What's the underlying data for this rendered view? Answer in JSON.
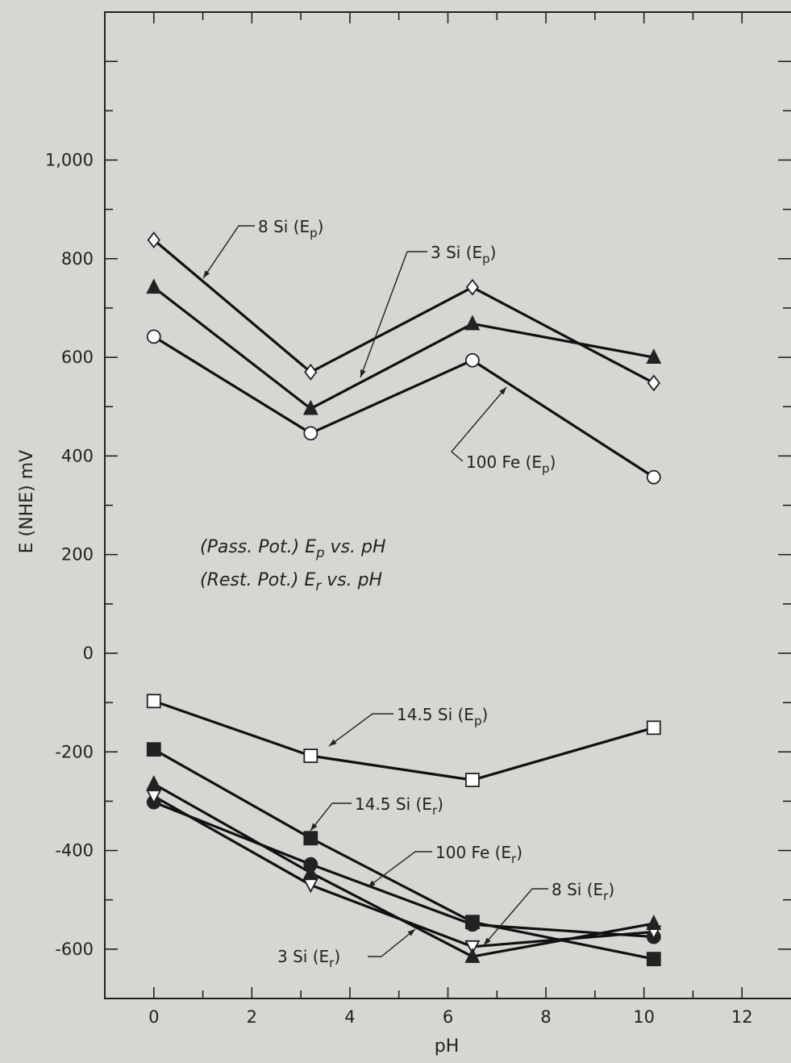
{
  "chart_data": {
    "type": "line",
    "xlabel": "pH",
    "ylabel": "E (NHE) mV",
    "xlim": [
      -1,
      13
    ],
    "ylim": [
      -700,
      1300
    ],
    "x_ticks": [
      0,
      2,
      4,
      6,
      8,
      10,
      12
    ],
    "x_tick_labels": [
      "0",
      "2",
      "4",
      "6",
      "8",
      "10",
      "12"
    ],
    "y_ticks": [
      -600,
      -400,
      -200,
      0,
      200,
      400,
      600,
      800,
      1000
    ],
    "y_tick_labels": [
      "-600",
      "-400",
      "-200",
      "0",
      "200",
      "400",
      "600",
      "800",
      "1,000"
    ],
    "grid": false,
    "notes": [
      {
        "pre": "(Pass. Pot.)  E",
        "sub": "p",
        "post": " vs. pH"
      },
      {
        "pre": "(Rest. Pot.)  E",
        "sub": "r",
        "post": " vs. pH"
      }
    ],
    "series": [
      {
        "name": "8 Si (Ep)",
        "marker": "diamond-open",
        "x": [
          0,
          3.2,
          6.5,
          10.2
        ],
        "y": [
          838,
          570,
          742,
          548
        ]
      },
      {
        "name": "3 Si (Ep)",
        "marker": "triangle-filled",
        "x": [
          0,
          3.2,
          6.5,
          10.2
        ],
        "y": [
          742,
          496,
          668,
          600
        ]
      },
      {
        "name": "100 Fe (Ep)",
        "marker": "circle-open",
        "x": [
          0,
          3.2,
          6.5,
          10.2
        ],
        "y": [
          642,
          446,
          594,
          357
        ]
      },
      {
        "name": "14.5 Si (Ep)",
        "marker": "square-open",
        "x": [
          0,
          3.2,
          6.5,
          10.2
        ],
        "y": [
          -97,
          -208,
          -257,
          -151
        ]
      },
      {
        "name": "14.5 Si (Er)",
        "marker": "square-filled",
        "x": [
          0,
          3.2,
          6.5,
          10.2
        ],
        "y": [
          -195,
          -375,
          -545,
          -620
        ]
      },
      {
        "name": "100 Fe (Er)",
        "marker": "circle-filled",
        "x": [
          0,
          3.2,
          6.5,
          10.2
        ],
        "y": [
          -302,
          -428,
          -550,
          -575
        ]
      },
      {
        "name": "8 Si (Er)",
        "marker": "triangle-down-open",
        "x": [
          0,
          3.2,
          6.5,
          10.2
        ],
        "y": [
          -290,
          -470,
          -595,
          -565
        ]
      },
      {
        "name": "3 Si (Er)",
        "marker": "triangle-filled",
        "x": [
          0,
          3.2,
          6.5,
          10.2
        ],
        "y": [
          -265,
          -445,
          -615,
          -548
        ]
      }
    ],
    "annotations": [
      {
        "pre": "8 Si (E",
        "sub": "p",
        "post": ")"
      },
      {
        "pre": "3 Si (E",
        "sub": "p",
        "post": ")"
      },
      {
        "pre": "100 Fe (E",
        "sub": "p",
        "post": ")"
      },
      {
        "pre": "14.5 Si (E",
        "sub": "p",
        "post": ")"
      },
      {
        "pre": "14.5 Si (E",
        "sub": "r",
        "post": ")"
      },
      {
        "pre": "100 Fe (E",
        "sub": "r",
        "post": ")"
      },
      {
        "pre": "8 Si (E",
        "sub": "r",
        "post": ")"
      },
      {
        "pre": "3 Si (E",
        "sub": "r",
        "post": ")"
      }
    ]
  }
}
